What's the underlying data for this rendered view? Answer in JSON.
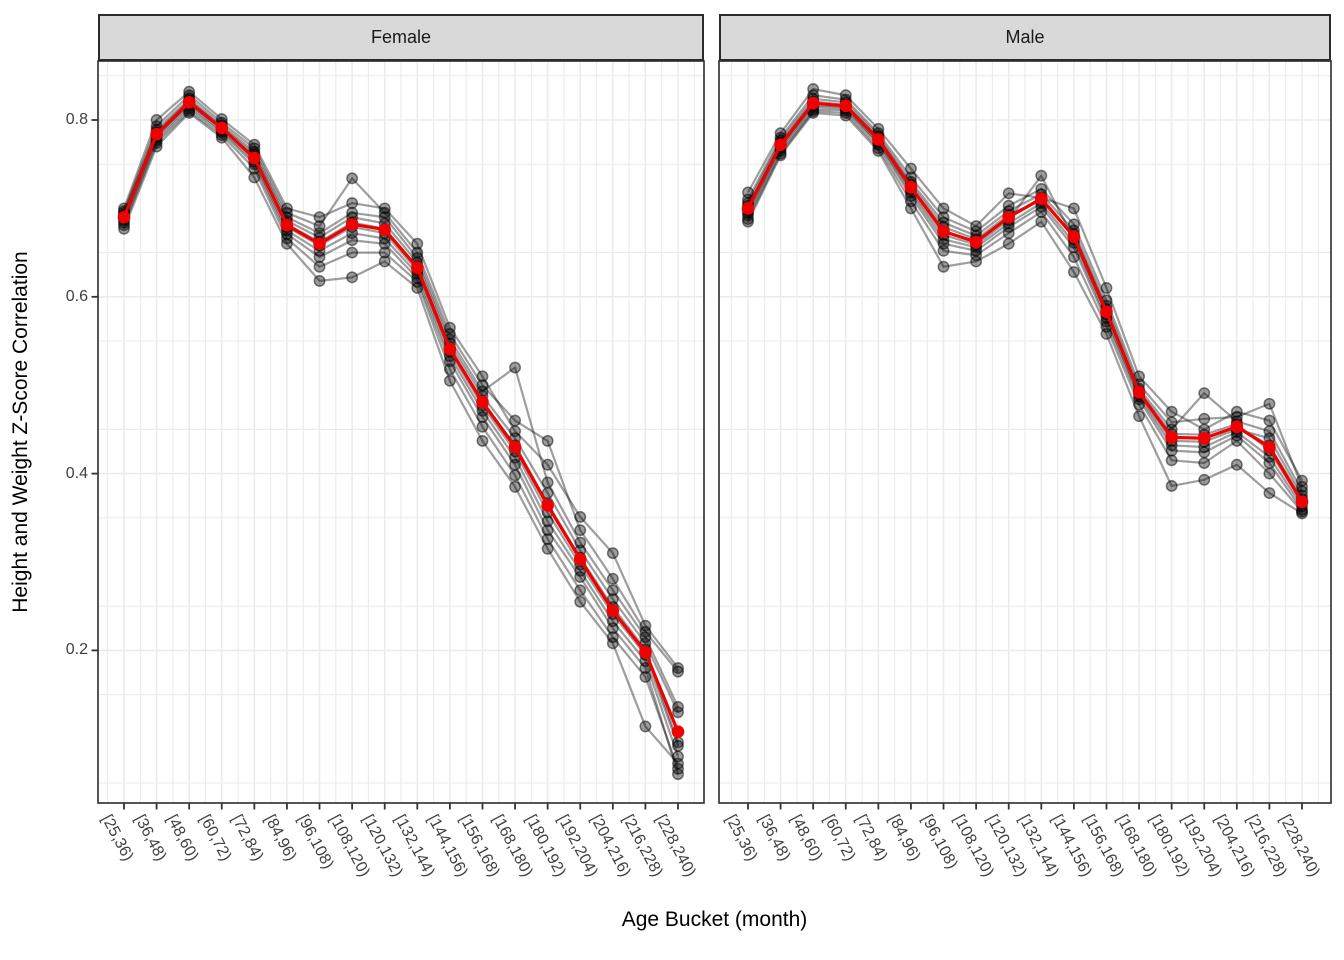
{
  "chart_data": {
    "type": "line",
    "faceted": true,
    "facets": [
      "Female",
      "Male"
    ],
    "xlabel": "Age Bucket (month)",
    "ylabel": "Height and Weight Z-Score Correlation",
    "categories": [
      "[25,36)",
      "[36,48)",
      "[48,60)",
      "[60,72)",
      "[72,84)",
      "[84,96)",
      "[96,108)",
      "[108,120)",
      "[120,132)",
      "[132,144)",
      "[144,156)",
      "[156,168)",
      "[168,180)",
      "[180,192)",
      "[192,204)",
      "[204,216)",
      "[216,228)",
      "[228,240)"
    ],
    "y_ticks": [
      0.2,
      0.4,
      0.6,
      0.8
    ],
    "y_tick_labels": [
      "0.2",
      "0.4",
      "0.6",
      "0.8"
    ],
    "ylim": [
      0.027,
      0.867
    ],
    "grid": true,
    "legend": "none",
    "panels": [
      {
        "facet": "Female",
        "mean_series": {
          "name": "mean",
          "values": [
            0.69,
            0.784,
            0.82,
            0.791,
            0.757,
            0.681,
            0.66,
            0.682,
            0.676,
            0.633,
            0.541,
            0.481,
            0.43,
            0.364,
            0.303,
            0.245,
            0.198,
            0.108
          ]
        },
        "individual_series": [
          {
            "name": "individual-1",
            "values": [
              0.691,
              0.784,
              0.82,
              0.791,
              0.758,
              0.682,
              0.662,
              0.684,
              0.677,
              0.634,
              0.542,
              0.482,
              0.432,
              0.366,
              0.305,
              0.249,
              0.201,
              0.096
            ]
          },
          {
            "name": "individual-2",
            "values": [
              0.687,
              0.78,
              0.816,
              0.788,
              0.753,
              0.675,
              0.652,
              0.672,
              0.666,
              0.626,
              0.533,
              0.471,
              0.418,
              0.346,
              0.29,
              0.233,
              0.188,
              0.08
            ]
          },
          {
            "name": "individual-3",
            "values": [
              0.697,
              0.793,
              0.828,
              0.797,
              0.768,
              0.695,
              0.68,
              0.734,
              0.695,
              0.65,
              0.558,
              0.5,
              0.46,
              0.437,
              0.336,
              0.281,
              0.221,
              0.176
            ]
          },
          {
            "name": "individual-4",
            "values": [
              0.7,
              0.8,
              0.832,
              0.801,
              0.772,
              0.7,
              0.69,
              0.706,
              0.7,
              0.66,
              0.565,
              0.51,
              0.448,
              0.41,
              0.351,
              0.31,
              0.228,
              0.18
            ]
          },
          {
            "name": "individual-5",
            "values": [
              0.684,
              0.777,
              0.813,
              0.786,
              0.75,
              0.671,
              0.645,
              0.664,
              0.66,
              0.621,
              0.527,
              0.464,
              0.41,
              0.336,
              0.283,
              0.225,
              0.18,
              0.06
            ]
          },
          {
            "name": "individual-6",
            "values": [
              0.693,
              0.786,
              0.822,
              0.792,
              0.761,
              0.686,
              0.667,
              0.69,
              0.683,
              0.639,
              0.547,
              0.488,
              0.44,
              0.378,
              0.313,
              0.258,
              0.208,
              0.13
            ]
          },
          {
            "name": "individual-7",
            "values": [
              0.677,
              0.77,
              0.808,
              0.78,
              0.735,
              0.66,
              0.618,
              0.622,
              0.64,
              0.61,
              0.505,
              0.437,
              0.385,
              0.315,
              0.255,
              0.208,
              0.114,
              0.072
            ]
          },
          {
            "name": "individual-8",
            "values": [
              0.695,
              0.789,
              0.824,
              0.794,
              0.764,
              0.69,
              0.672,
              0.695,
              0.69,
              0.644,
              0.552,
              0.493,
              0.52,
              0.39,
              0.322,
              0.268,
              0.215,
              0.136
            ]
          },
          {
            "name": "individual-9",
            "values": [
              0.681,
              0.774,
              0.81,
              0.783,
              0.745,
              0.666,
              0.634,
              0.65,
              0.65,
              0.617,
              0.518,
              0.453,
              0.398,
              0.326,
              0.268,
              0.215,
              0.17,
              0.066
            ]
          },
          {
            "name": "individual-10",
            "values": [
              0.689,
              0.782,
              0.818,
              0.79,
              0.756,
              0.679,
              0.658,
              0.679,
              0.672,
              0.63,
              0.538,
              0.477,
              0.425,
              0.356,
              0.297,
              0.241,
              0.195,
              0.092
            ]
          }
        ]
      },
      {
        "facet": "Male",
        "mean_series": {
          "name": "mean",
          "values": [
            0.7,
            0.772,
            0.819,
            0.816,
            0.778,
            0.724,
            0.674,
            0.662,
            0.69,
            0.711,
            0.668,
            0.583,
            0.492,
            0.441,
            0.44,
            0.453,
            0.43,
            0.368
          ]
        },
        "individual_series": [
          {
            "name": "individual-1",
            "values": [
              0.7,
              0.772,
              0.819,
              0.816,
              0.778,
              0.724,
              0.674,
              0.662,
              0.69,
              0.711,
              0.668,
              0.583,
              0.492,
              0.441,
              0.44,
              0.453,
              0.432,
              0.371
            ]
          },
          {
            "name": "individual-2",
            "values": [
              0.695,
              0.768,
              0.815,
              0.813,
              0.774,
              0.718,
              0.665,
              0.656,
              0.683,
              0.706,
              0.661,
              0.576,
              0.487,
              0.432,
              0.43,
              0.447,
              0.419,
              0.363
            ]
          },
          {
            "name": "individual-3",
            "values": [
              0.71,
              0.78,
              0.828,
              0.823,
              0.785,
              0.735,
              0.69,
              0.674,
              0.703,
              0.722,
              0.682,
              0.596,
              0.501,
              0.458,
              0.462,
              0.464,
              0.479,
              0.385
            ]
          },
          {
            "name": "individual-4",
            "values": [
              0.718,
              0.785,
              0.835,
              0.828,
              0.79,
              0.745,
              0.7,
              0.68,
              0.717,
              0.712,
              0.7,
              0.61,
              0.51,
              0.47,
              0.45,
              0.47,
              0.46,
              0.392
            ]
          },
          {
            "name": "individual-5",
            "values": [
              0.692,
              0.765,
              0.812,
              0.811,
              0.772,
              0.714,
              0.66,
              0.652,
              0.679,
              0.702,
              0.656,
              0.572,
              0.484,
              0.426,
              0.424,
              0.443,
              0.412,
              0.359
            ]
          },
          {
            "name": "individual-6",
            "values": [
              0.698,
              0.77,
              0.817,
              0.815,
              0.776,
              0.721,
              0.67,
              0.659,
              0.687,
              0.737,
              0.665,
              0.58,
              0.49,
              0.437,
              0.436,
              0.45,
              0.44,
              0.375
            ]
          },
          {
            "name": "individual-7",
            "values": [
              0.685,
              0.76,
              0.808,
              0.805,
              0.765,
              0.7,
              0.634,
              0.64,
              0.66,
              0.685,
              0.628,
              0.558,
              0.465,
              0.386,
              0.393,
              0.41,
              0.378,
              0.355
            ]
          },
          {
            "name": "individual-8",
            "values": [
              0.706,
              0.777,
              0.824,
              0.82,
              0.782,
              0.73,
              0.684,
              0.669,
              0.697,
              0.716,
              0.675,
              0.59,
              0.496,
              0.45,
              0.491,
              0.459,
              0.448,
              0.38
            ]
          },
          {
            "name": "individual-9",
            "values": [
              0.688,
              0.762,
              0.81,
              0.808,
              0.768,
              0.708,
              0.652,
              0.647,
              0.672,
              0.696,
              0.645,
              0.566,
              0.478,
              0.415,
              0.412,
              0.437,
              0.4,
              0.357
            ]
          },
          {
            "name": "individual-10",
            "values": [
              0.703,
              0.774,
              0.821,
              0.817,
              0.78,
              0.727,
              0.679,
              0.665,
              0.693,
              0.709,
              0.671,
              0.586,
              0.493,
              0.445,
              0.444,
              0.456,
              0.426,
              0.367
            ]
          }
        ]
      }
    ],
    "style": {
      "mean_color": "#F20000",
      "individual_line_color": "rgba(0,0,0,0.38)",
      "individual_point_fill": "rgba(0,0,0,0.38)",
      "individual_point_stroke": "rgba(0,0,0,0.50)",
      "grid_color": "#EBEBEB",
      "panel_border_color": "#2B2B2B",
      "strip_fill": "#D9D9D9",
      "tick_color": "#333333",
      "tick_label_color": "#404040",
      "text_color": "#000000",
      "panel_background": "#FFFFFF"
    }
  }
}
